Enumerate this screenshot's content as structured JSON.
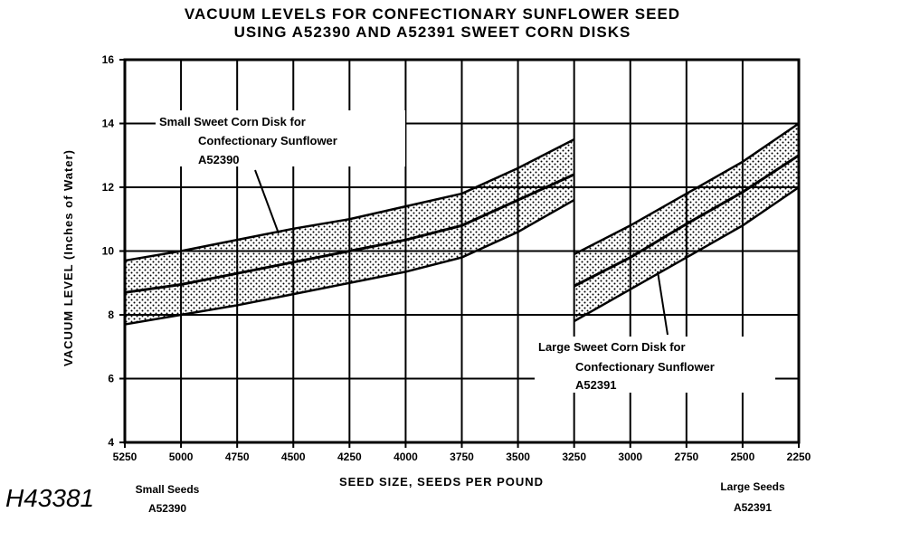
{
  "chart_data": {
    "type": "area",
    "title": [
      "VACUUM LEVELS FOR CONFECTIONARY SUNFLOWER SEED",
      "USING A52390 AND A52391 SWEET CORN DISKS"
    ],
    "xlabel": "SEED SIZE, SEEDS PER POUND",
    "ylabel": "VACUUM LEVEL (Inches of Water)",
    "x_ticks": [
      5250,
      5000,
      4750,
      4500,
      4250,
      4000,
      3750,
      3500,
      3250,
      3000,
      2750,
      2500,
      2250
    ],
    "xlim": [
      5250,
      2250
    ],
    "y_ticks": [
      4,
      6,
      8,
      10,
      12,
      14,
      16
    ],
    "ylim": [
      4,
      16
    ],
    "grid": true,
    "series": [
      {
        "name": "Small Sweet Corn Disk for Confectionary Sunflower A52390",
        "x": [
          5250,
          5000,
          4750,
          4500,
          4250,
          4000,
          3750,
          3500,
          3250
        ],
        "upper": [
          9.7,
          10.0,
          10.35,
          10.7,
          11.0,
          11.4,
          11.8,
          12.6,
          13.5
        ],
        "mid": [
          8.7,
          8.95,
          9.3,
          9.65,
          10.0,
          10.35,
          10.8,
          11.6,
          12.4
        ],
        "lower": [
          7.7,
          8.0,
          8.3,
          8.65,
          9.0,
          9.35,
          9.8,
          10.6,
          11.6
        ]
      },
      {
        "name": "Large Sweet Corn Disk for Confectionary Sunflower A52391",
        "x": [
          3250,
          3000,
          2750,
          2500,
          2250
        ],
        "upper": [
          9.9,
          10.8,
          11.8,
          12.8,
          14.0
        ],
        "mid": [
          8.9,
          9.8,
          10.85,
          11.85,
          13.0
        ],
        "lower": [
          7.8,
          8.8,
          9.8,
          10.8,
          12.0
        ]
      }
    ],
    "annotations": [
      {
        "lines": [
          "Small Sweet Corn Disk for",
          "Confectionary Sunflower",
          "A52390"
        ]
      },
      {
        "lines": [
          "Large Sweet Corn Disk for",
          "Confectionary Sunflower",
          "A52391"
        ]
      }
    ],
    "corner_labels": {
      "left": [
        "Small Seeds",
        "A52390"
      ],
      "right": [
        "Large Seeds",
        "A52391"
      ]
    },
    "figure_id": "H43381"
  }
}
